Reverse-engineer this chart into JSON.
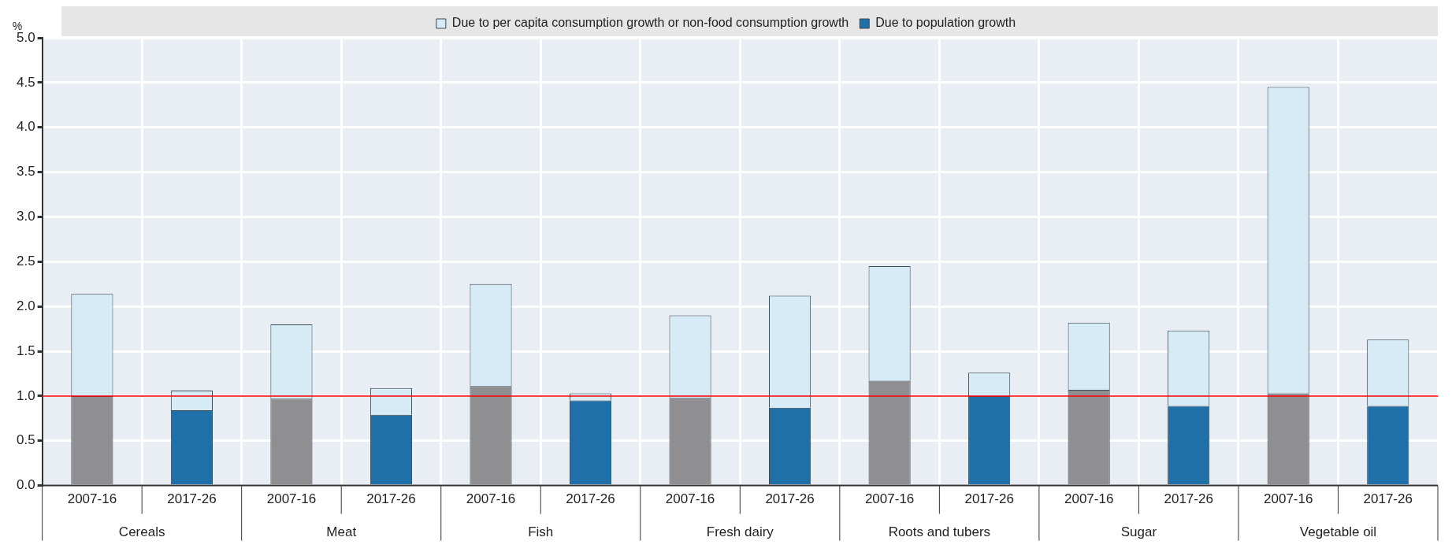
{
  "chart_data": {
    "type": "bar",
    "stacked": true,
    "ylabel": "%",
    "categories": [
      "2007-16",
      "2017-26",
      "2007-16",
      "2017-26",
      "2007-16",
      "2017-26",
      "2007-16",
      "2017-26",
      "2007-16",
      "2017-26",
      "2007-16",
      "2017-26",
      "2007-16",
      "2017-26"
    ],
    "series": [
      {
        "name": "Due to population growth",
        "color": "#1f6fa8",
        "colors": [
          "#8f8f91",
          "#1f6fa8",
          "#8f8f91",
          "#1f6fa8",
          "#8f8f91",
          "#1f6fa8",
          "#8f8f91",
          "#1f6fa8",
          "#8f8f91",
          "#1f6fa8",
          "#8f8f91",
          "#1f6fa8",
          "#8f8f91",
          "#1f6fa8"
        ],
        "values": [
          1.0,
          0.84,
          0.97,
          0.79,
          1.11,
          0.95,
          0.98,
          0.87,
          1.17,
          1.0,
          1.07,
          0.89,
          1.03,
          0.89
        ]
      },
      {
        "name": "Due to per capita consumption growth or non-food consumption growth",
        "color": "#d6ebf5",
        "values": [
          1.14,
          0.22,
          0.83,
          0.3,
          1.14,
          0.08,
          0.92,
          1.25,
          1.28,
          0.26,
          0.75,
          0.84,
          3.42,
          0.74
        ]
      }
    ],
    "annotations": [
      "Cereals",
      "Meat",
      "Fish",
      "Fresh dairy",
      "Roots and tubers",
      "Sugar",
      "Vegetable oil"
    ],
    "ref_lines": [
      {
        "axis": "y",
        "value": 1.0,
        "color": "#ff0000"
      }
    ],
    "ylim": [
      0,
      5
    ],
    "yticks": [
      {
        "value": 0,
        "label": "0.0"
      },
      {
        "value": 0.5,
        "label": "0.5"
      },
      {
        "value": 1,
        "label": "1.0"
      },
      {
        "value": 1.5,
        "label": "1.5"
      },
      {
        "value": 2,
        "label": "2.0"
      },
      {
        "value": 2.5,
        "label": "2.5"
      },
      {
        "value": 3,
        "label": "3.0"
      },
      {
        "value": 3.5,
        "label": "3.5"
      },
      {
        "value": 4,
        "label": "4.0"
      },
      {
        "value": 4.5,
        "label": "4.5"
      },
      {
        "value": 5,
        "label": "5.0"
      }
    ],
    "grid": true,
    "legend": "top"
  }
}
